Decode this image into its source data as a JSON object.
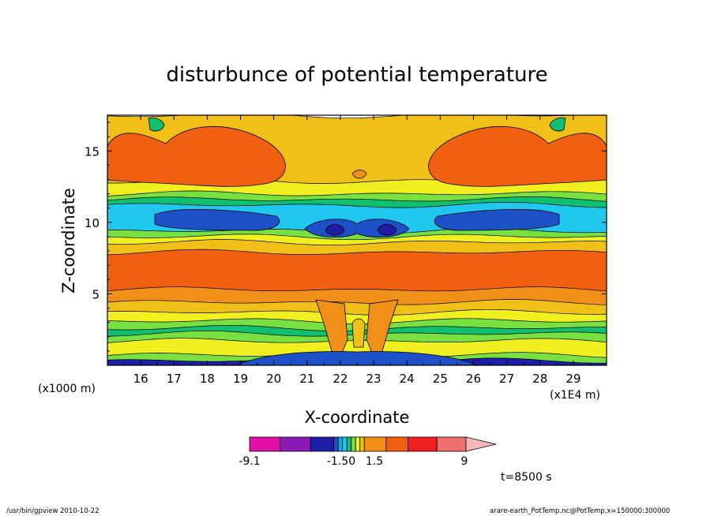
{
  "chart_data": {
    "type": "heatmap",
    "title": "disturbunce of potential temperature",
    "xlabel": "X-coordinate",
    "ylabel": "Z-coordinate",
    "x_unit": "(x1E4 m)",
    "y_unit": "(x1000 m)",
    "xlim": [
      15,
      30
    ],
    "ylim": [
      0,
      17.5
    ],
    "x_ticks": [
      "16",
      "17",
      "18",
      "19",
      "20",
      "21",
      "22",
      "23",
      "24",
      "25",
      "26",
      "27",
      "28",
      "29"
    ],
    "y_ticks": [
      "5",
      "10",
      "15"
    ],
    "colorbar": {
      "labels": [
        "-9.1",
        "-1.50",
        "1.5",
        "9"
      ],
      "colors": [
        "#e010a8",
        "#8c1ab4",
        "#1e1ea8",
        "#1e50c8",
        "#10a8e0",
        "#20c8f0",
        "#10c070",
        "#78e040",
        "#f0f020",
        "#f0c018",
        "#f09018",
        "#f06010",
        "#f02020",
        "#f07070",
        "#f8b8b8"
      ]
    },
    "time_label": "t=8500 s",
    "layers": [
      {
        "z_top": 17.5,
        "color": "#f0c018"
      },
      {
        "z_top": 12.9,
        "color": "#f0f020"
      },
      {
        "z_top": 12.0,
        "color": "#78e040"
      },
      {
        "z_top": 11.6,
        "color": "#10c070"
      },
      {
        "z_top": 11.2,
        "color": "#20c8f0"
      },
      {
        "z_top": 9.4,
        "color": "#78e040"
      },
      {
        "z_top": 9.0,
        "color": "#f0f020"
      },
      {
        "z_top": 8.6,
        "color": "#f0c018"
      },
      {
        "z_top": 7.9,
        "color": "#f06010"
      },
      {
        "z_top": 5.3,
        "color": "#f09018"
      },
      {
        "z_top": 4.4,
        "color": "#f0c018"
      },
      {
        "z_top": 3.7,
        "color": "#f0f020"
      },
      {
        "z_top": 3.1,
        "color": "#78e040"
      },
      {
        "z_top": 2.6,
        "color": "#10c070"
      },
      {
        "z_top": 2.2,
        "color": "#78e040"
      },
      {
        "z_top": 1.7,
        "color": "#f0f020"
      },
      {
        "z_top": 0.7,
        "color": "#78e040"
      },
      {
        "z_top": 0.3,
        "color": "#1e1ea8"
      }
    ]
  },
  "footer": {
    "left": "/usr/bin/gpview  2010-10-22",
    "right": "arare-earth_PotTemp.nc@PotTemp,x=150000:300000"
  }
}
